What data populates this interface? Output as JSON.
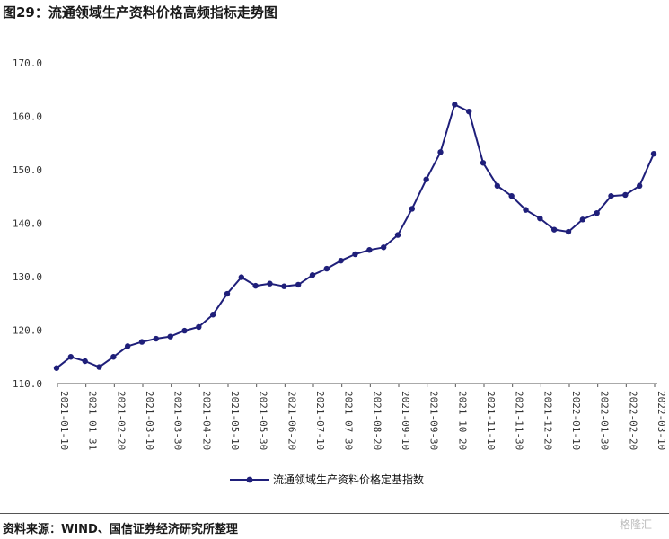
{
  "title": "图29：流通领域生产资料价格高频指标走势图",
  "source": "资料来源：WIND、国信证券经济研究所整理",
  "watermark": "格隆汇",
  "chart_data": {
    "type": "line",
    "title": "图29：流通领域生产资料价格高频指标走势图",
    "xlabel": "",
    "ylabel": "",
    "ylim": [
      110,
      170
    ],
    "yticks": [
      "110.0",
      "120.0",
      "130.0",
      "140.0",
      "150.0",
      "160.0",
      "170.0"
    ],
    "xtick_labels": [
      "2021-01-10",
      "2021-01-31",
      "2021-02-20",
      "2021-03-10",
      "2021-03-30",
      "2021-04-20",
      "2021-05-10",
      "2021-05-30",
      "2021-06-20",
      "2021-07-10",
      "2021-07-30",
      "2021-08-20",
      "2021-09-10",
      "2021-09-30",
      "2021-10-20",
      "2021-11-10",
      "2021-11-30",
      "2021-12-20",
      "2022-01-10",
      "2022-01-30",
      "2022-02-20",
      "2022-03-10"
    ],
    "grid": false,
    "legend_position": "bottom",
    "color": "#1f1f7a",
    "series": [
      {
        "name": "流通领域生产资料价格定基指数",
        "values": [
          112.9,
          115.0,
          114.2,
          113.1,
          115.0,
          117.0,
          117.8,
          118.4,
          118.8,
          119.9,
          120.6,
          122.9,
          126.8,
          129.9,
          128.3,
          128.7,
          128.2,
          128.5,
          130.3,
          131.5,
          133.0,
          134.2,
          135.0,
          135.5,
          137.8,
          142.7,
          148.2,
          153.3,
          162.2,
          160.9,
          151.3,
          147.0,
          145.1,
          142.5,
          140.9,
          138.8,
          138.4,
          140.7,
          141.9,
          145.1,
          145.3,
          147.0,
          153.0
        ]
      }
    ]
  }
}
